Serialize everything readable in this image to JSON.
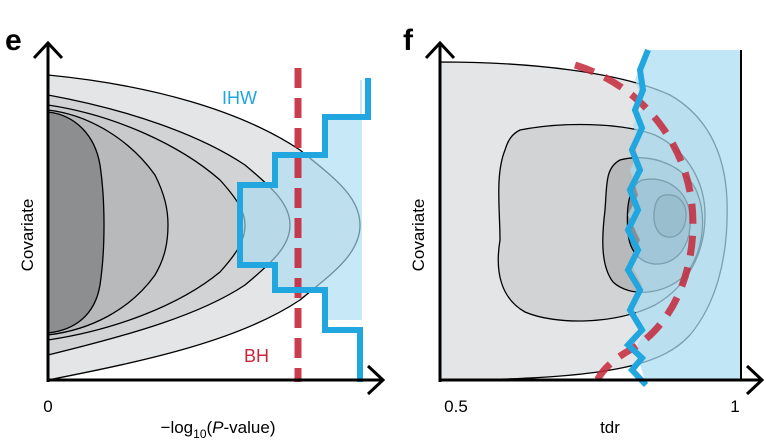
{
  "panels": [
    {
      "letter": "e",
      "ylabel": "Covariate",
      "x_tick_left": "0",
      "xlabel_prefix": "−log",
      "xlabel_sub": "10",
      "xlabel_paren_open": "(",
      "xlabel_italic": "P",
      "xlabel_suffix": "-value)",
      "legend": {
        "ihw": "IHW",
        "bh": "BH"
      }
    },
    {
      "letter": "f",
      "ylabel": "Covariate",
      "x_tick_left": "0.5",
      "xlabel": "tdr",
      "x_tick_right": "1"
    }
  ],
  "colors": {
    "ihw": "#21a6df",
    "ihw_region": "#a9dcf2",
    "bh": "#c4283a",
    "contour_light": "#e4e5e6",
    "contour_mid1": "#d2d3d4",
    "contour_mid2": "#b8b9ba",
    "contour_dark": "#8d8e8f",
    "contour_darkest": "#6f7071"
  }
}
